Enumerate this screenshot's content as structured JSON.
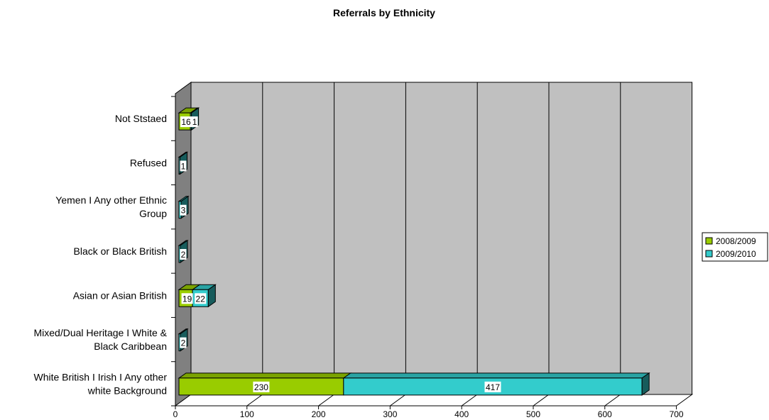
{
  "chart_data": {
    "type": "bar",
    "orientation": "horizontal",
    "stacked": true,
    "three_d": true,
    "title": "Referrals by Ethnicity",
    "xlabel": "",
    "ylabel": "",
    "xlim": [
      0,
      700
    ],
    "x_ticks": [
      0,
      100,
      200,
      300,
      400,
      500,
      600,
      700
    ],
    "grid": true,
    "legend_position": "right",
    "categories": [
      "White British I Irish I Any other white Background",
      "Mixed/Dual Heritage I White & Black Caribbean",
      "Asian or Asian British",
      "Black or Black British",
      "Yemen I Any other Ethnic Group",
      "Refused",
      "Not Ststaed"
    ],
    "category_lines": [
      [
        "White British I Irish I Any other",
        "white Background"
      ],
      [
        "Mixed/Dual Heritage I White &",
        "Black Caribbean"
      ],
      [
        "Asian or Asian British"
      ],
      [
        "Black or Black British"
      ],
      [
        "Yemen I Any other Ethnic",
        "Group"
      ],
      [
        "Refused"
      ],
      [
        "Not Ststaed"
      ]
    ],
    "series": [
      {
        "name": "2008/2009",
        "color": "#99cc00",
        "values": [
          230,
          0,
          19,
          0,
          0,
          0,
          16
        ],
        "labels": [
          "230",
          "",
          "19",
          "",
          "",
          "",
          "16"
        ]
      },
      {
        "name": "2009/2010",
        "color": "#33cccc",
        "values": [
          417,
          2,
          22,
          2,
          3,
          1,
          1
        ],
        "labels": [
          "417",
          "2",
          "22",
          "2",
          "3",
          "1",
          "1"
        ]
      }
    ],
    "colors": {
      "plot_wall": "#c0c0c0",
      "floor": "#ffffff",
      "grid": "#000000"
    }
  }
}
